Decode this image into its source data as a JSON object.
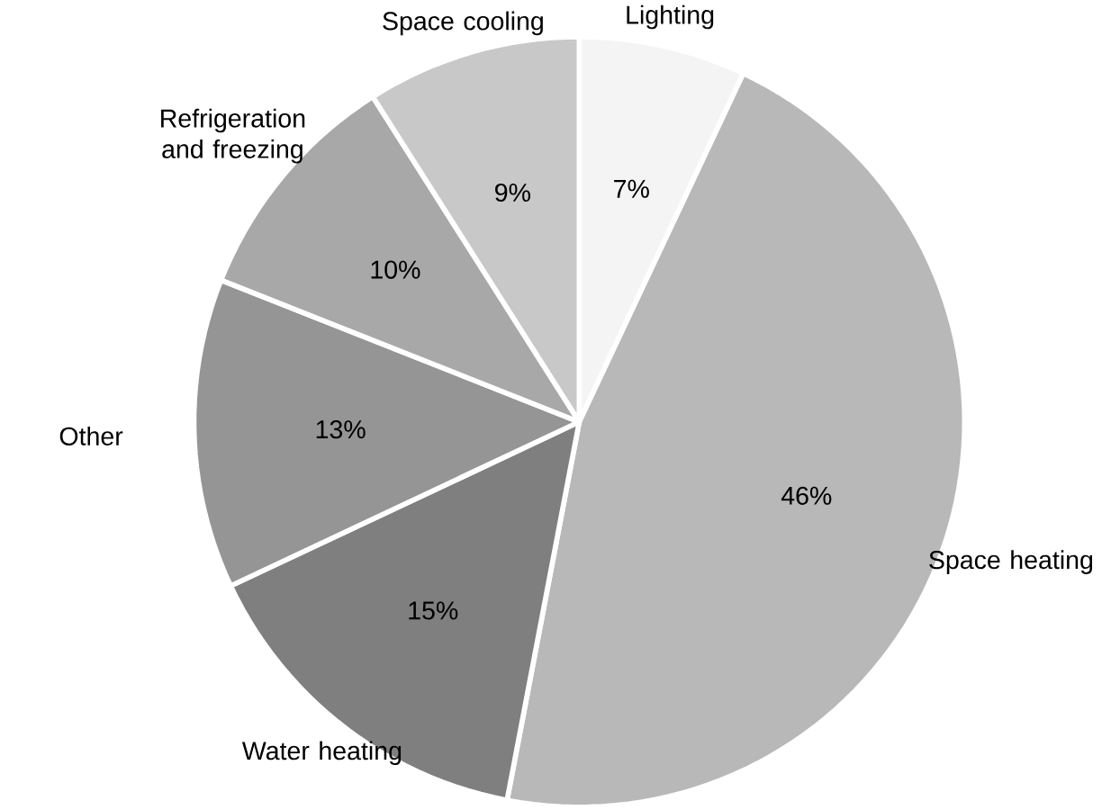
{
  "chart_data": {
    "type": "pie",
    "categories": [
      "Lighting",
      "Space heating",
      "Water heating",
      "Other",
      "Refrigeration and freezing",
      "Space cooling"
    ],
    "values": [
      7,
      46,
      15,
      13,
      10,
      9
    ],
    "value_labels": [
      "7%",
      "46%",
      "15%",
      "13%",
      "10%",
      "9%"
    ],
    "colors": [
      "#f4f4f4",
      "#b8b8b8",
      "#7f7f7f",
      "#959595",
      "#a8a8a8",
      "#c8c8c8"
    ]
  }
}
